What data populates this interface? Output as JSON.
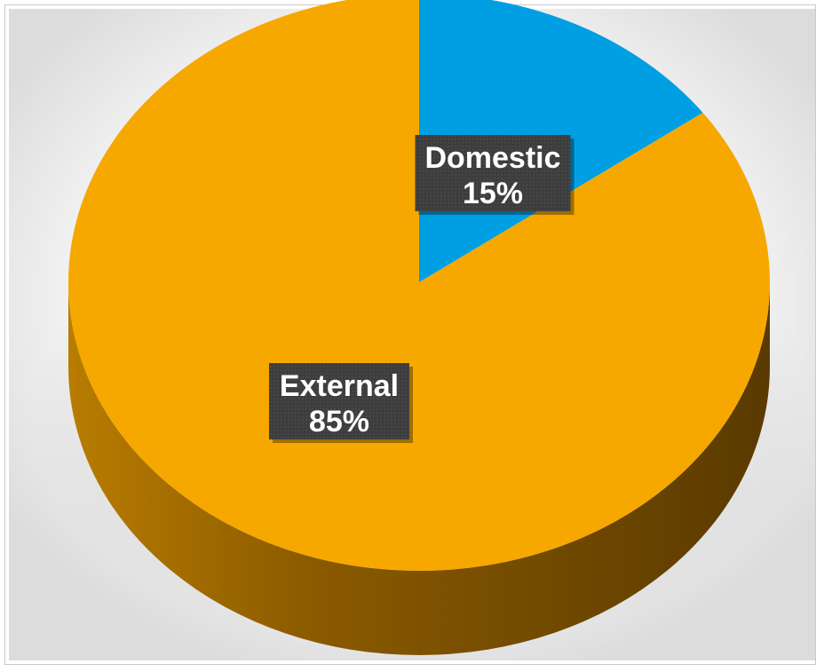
{
  "chart_data": {
    "type": "pie",
    "style": "3d",
    "categories": [
      "Domestic",
      "External"
    ],
    "values": [
      15,
      85
    ],
    "value_suffix": "%",
    "colors": [
      "#009fe3",
      "#f6a800"
    ],
    "side_colors": [
      "#00699a",
      "#6e4600"
    ],
    "data_label_background": "#404040",
    "legend": "none",
    "title": ""
  }
}
